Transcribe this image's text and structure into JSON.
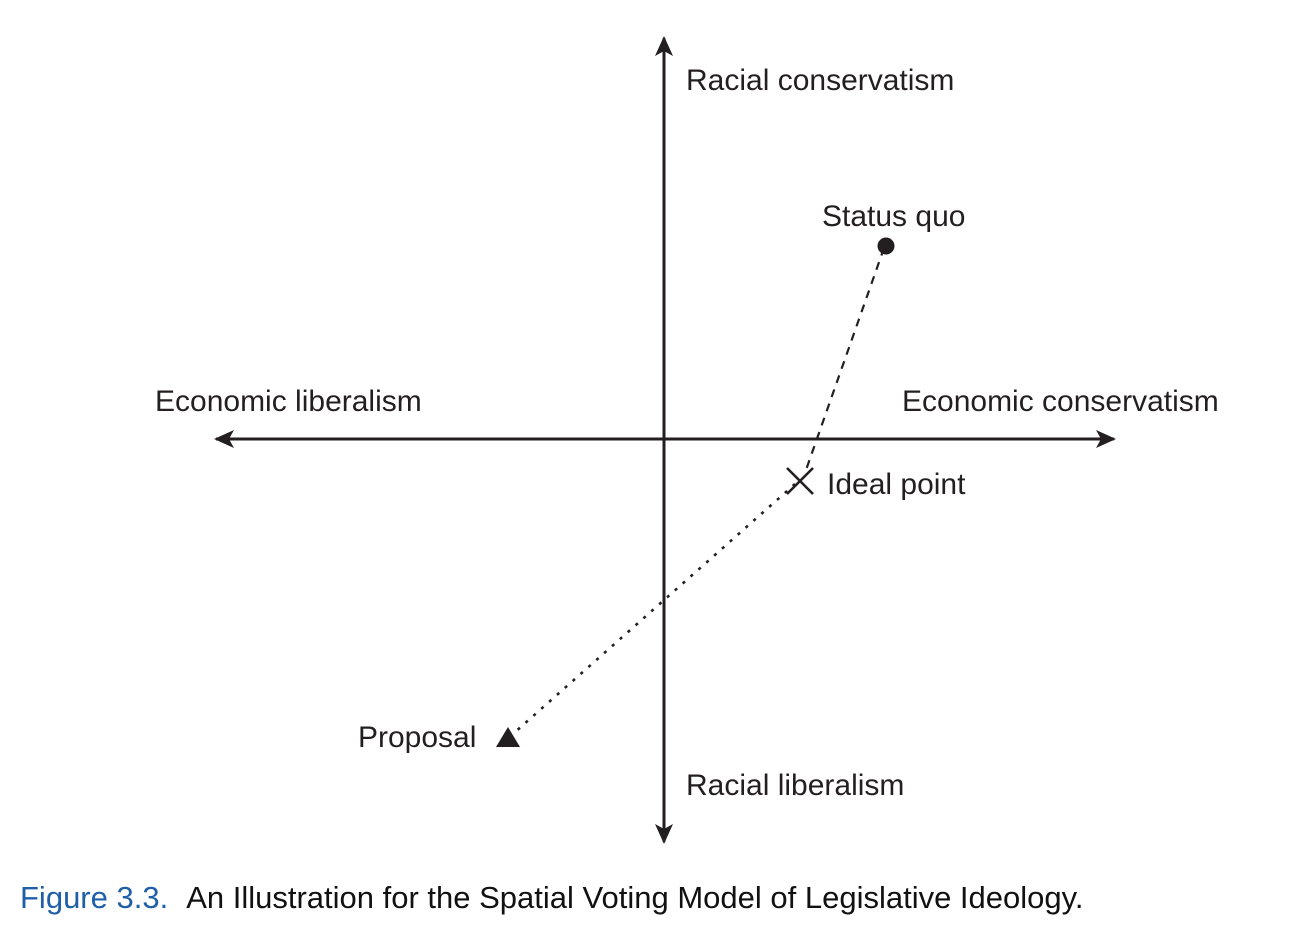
{
  "diagram": {
    "axes": {
      "vertical_top": "Racial conservatism",
      "vertical_bottom": "Racial liberalism",
      "horizontal_left": "Economic liberalism",
      "horizontal_right": "Economic conservatism"
    },
    "points": {
      "status_quo": "Status quo",
      "ideal_point": "Ideal point",
      "proposal": "Proposal"
    }
  },
  "caption": {
    "number": "Figure 3.3.",
    "text": "An Illustration for the Spatial Voting Model of Legislative Ideology."
  },
  "colors": {
    "ink": "#231f20",
    "caption_number": "#1f5fa8"
  }
}
